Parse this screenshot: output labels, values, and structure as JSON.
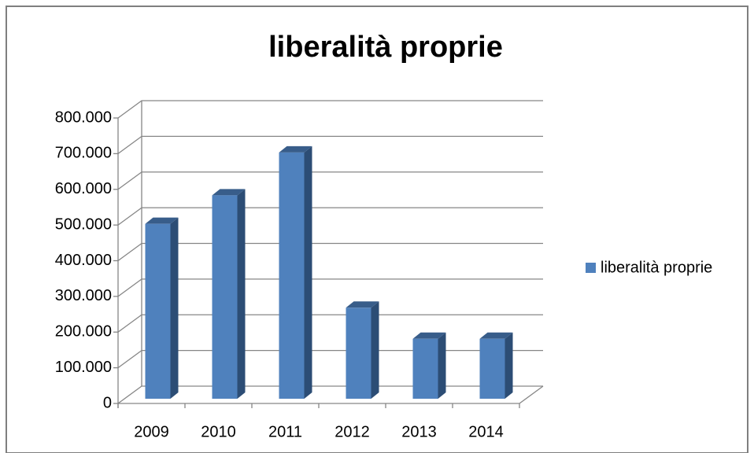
{
  "chart_data": {
    "type": "bar3d",
    "title": "liberalità proprie",
    "categories": [
      "2009",
      "2010",
      "2011",
      "2012",
      "2013",
      "2014"
    ],
    "series": [
      {
        "name": "liberalità proprie",
        "color": "#4f81bd",
        "values": [
          490000,
          570000,
          690000,
          255000,
          168000,
          168000
        ]
      }
    ],
    "ylim": [
      0,
      800000
    ],
    "yticks": [
      0,
      {
        "value": 100000,
        "label": "100.000"
      },
      {
        "value": 200000,
        "label": "200.000"
      },
      {
        "value": 300000,
        "label": "300.000"
      },
      {
        "value": 400000,
        "label": "400.000"
      },
      {
        "value": 500000,
        "label": "500.000"
      },
      {
        "value": 600000,
        "label": "600.000"
      },
      {
        "value": 700000,
        "label": "700.000"
      },
      {
        "value": 800000,
        "label": "800.000"
      }
    ],
    "grid": true,
    "legend": "right"
  }
}
